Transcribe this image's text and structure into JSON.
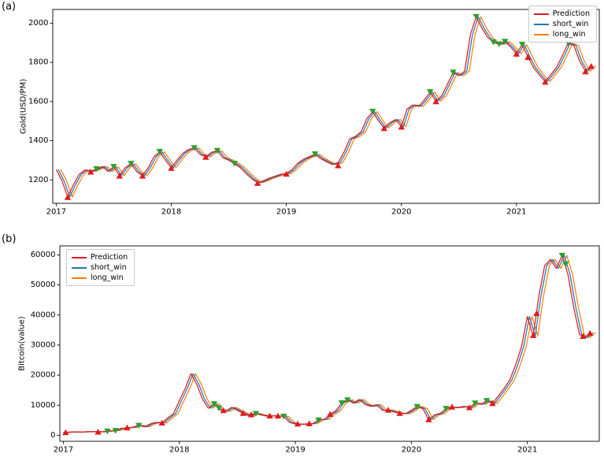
{
  "figure": {
    "background": "#ffffff"
  },
  "chart_data": [
    {
      "type": "line",
      "panel_label": "(a)",
      "title": "",
      "xlabel": "",
      "ylabel": "Gold(USD/PM)",
      "xlim": [
        2016.97,
        2021.72
      ],
      "ylim": [
        1080,
        2070
      ],
      "xticks": [
        2017,
        2018,
        2019,
        2020,
        2021
      ],
      "yticks": [
        1200,
        1400,
        1600,
        1800,
        2000
      ],
      "legend_position": "top-right",
      "x_start": 2017.0,
      "x_step": 0.05,
      "values": [
        1253,
        1195,
        1113,
        1175,
        1228,
        1250,
        1243,
        1255,
        1268,
        1243,
        1266,
        1222,
        1262,
        1282,
        1242,
        1222,
        1262,
        1318,
        1343,
        1300,
        1262,
        1300,
        1335,
        1355,
        1362,
        1330,
        1318,
        1340,
        1348,
        1312,
        1300,
        1282,
        1262,
        1232,
        1205,
        1185,
        1195,
        1208,
        1218,
        1228,
        1232,
        1252,
        1285,
        1305,
        1318,
        1330,
        1308,
        1292,
        1278,
        1288,
        1340,
        1408,
        1422,
        1445,
        1512,
        1548,
        1502,
        1465,
        1492,
        1508,
        1472,
        1562,
        1582,
        1575,
        1608,
        1648,
        1602,
        1628,
        1688,
        1748,
        1732,
        1755,
        1942,
        2032,
        1975,
        1928,
        1902,
        1892,
        1905,
        1878,
        1845,
        1890,
        1828,
        1772,
        1735,
        1702,
        1738,
        1775,
        1835,
        1898,
        1885,
        1805,
        1755,
        1782
      ],
      "series": [
        {
          "name": "Prediction",
          "color": "#e41a1c",
          "x_offset": 0.0
        },
        {
          "name": "short_win",
          "color": "#1f77b4",
          "x_offset": 0.018
        },
        {
          "name": "long_win",
          "color": "#ff7f0e",
          "x_offset": 0.04
        }
      ],
      "markers": [
        {
          "name": "buy-signal",
          "shape": "triangle-up",
          "color": "#e41a1c",
          "points": [
            [
              2017.1,
              1110
            ],
            [
              2017.3,
              1240
            ],
            [
              2017.55,
              1219
            ],
            [
              2017.75,
              1219
            ],
            [
              2018.0,
              1259
            ],
            [
              2018.3,
              1315
            ],
            [
              2018.75,
              1182
            ],
            [
              2019.0,
              1229
            ],
            [
              2019.45,
              1272
            ],
            [
              2019.85,
              1462
            ],
            [
              2020.0,
              1469
            ],
            [
              2020.3,
              1599
            ],
            [
              2021.0,
              1842
            ],
            [
              2021.1,
              1825
            ],
            [
              2021.25,
              1699
            ],
            [
              2021.6,
              1752
            ],
            [
              2021.65,
              1779
            ]
          ]
        },
        {
          "name": "sell-signal",
          "shape": "triangle-down",
          "color": "#2ca02c",
          "points": [
            [
              2017.35,
              1257
            ],
            [
              2017.5,
              1268
            ],
            [
              2017.65,
              1284
            ],
            [
              2017.9,
              1345
            ],
            [
              2018.2,
              1364
            ],
            [
              2018.4,
              1350
            ],
            [
              2018.55,
              1284
            ],
            [
              2019.25,
              1332
            ],
            [
              2019.75,
              1550
            ],
            [
              2020.25,
              1650
            ],
            [
              2020.45,
              1750
            ],
            [
              2020.65,
              2034
            ],
            [
              2020.8,
              1904
            ],
            [
              2020.85,
              1894
            ],
            [
              2020.9,
              1907
            ],
            [
              2021.05,
              1892
            ],
            [
              2021.45,
              1900
            ]
          ]
        }
      ]
    },
    {
      "type": "line",
      "panel_label": "(b)",
      "title": "",
      "xlabel": "",
      "ylabel": "Bitcoin(value)",
      "xlim": [
        2016.97,
        2021.62
      ],
      "ylim": [
        -2000,
        63000
      ],
      "xticks": [
        2017,
        2018,
        2019,
        2020,
        2021
      ],
      "yticks": [
        0,
        10000,
        20000,
        30000,
        40000,
        50000,
        60000
      ],
      "legend_position": "top-left",
      "x_start": 2017.0,
      "x_step": 0.05,
      "values": [
        950,
        1050,
        1150,
        1080,
        1180,
        1250,
        1100,
        1250,
        1450,
        1600,
        2300,
        2500,
        2700,
        3300,
        2800,
        3800,
        4300,
        4100,
        5800,
        7200,
        11500,
        15500,
        20500,
        17000,
        12000,
        9000,
        10500,
        8500,
        8000,
        9300,
        8300,
        7300,
        6500,
        7300,
        6800,
        6400,
        6500,
        6400,
        6300,
        4300,
        3800,
        3650,
        3800,
        3900,
        5100,
        5300,
        7000,
        8200,
        10800,
        11800,
        10700,
        11900,
        10300,
        9600,
        10200,
        8300,
        8400,
        7800,
        7300,
        7200,
        8300,
        9600,
        8800,
        5200,
        6800,
        7300,
        8900,
        9400,
        9200,
        9600,
        9200,
        10700,
        10300,
        11500,
        10600,
        13100,
        15600,
        18500,
        23500,
        29500,
        39500,
        33000,
        46500,
        56500,
        58500,
        55500,
        59800,
        53500,
        42500,
        33500,
        32500,
        34200
      ],
      "series": [
        {
          "name": "Prediction",
          "color": "#e41a1c",
          "x_offset": 0.0
        },
        {
          "name": "short_win",
          "color": "#1f77b4",
          "x_offset": 0.018
        },
        {
          "name": "long_win",
          "color": "#ff7f0e",
          "x_offset": 0.04
        }
      ],
      "markers": [
        {
          "name": "buy-signal",
          "shape": "triangle-up",
          "color": "#e41a1c",
          "points": [
            [
              2017.02,
              900
            ],
            [
              2017.3,
              1080
            ],
            [
              2017.55,
              2480
            ],
            [
              2017.85,
              4080
            ],
            [
              2018.38,
              8200
            ],
            [
              2018.55,
              7300
            ],
            [
              2018.62,
              6820
            ],
            [
              2018.78,
              6440
            ],
            [
              2018.85,
              6400
            ],
            [
              2019.02,
              3740
            ],
            [
              2019.12,
              3840
            ],
            [
              2019.3,
              6980
            ],
            [
              2019.8,
              8380
            ],
            [
              2019.9,
              7300
            ],
            [
              2020.15,
              5200
            ],
            [
              2020.35,
              9400
            ],
            [
              2020.5,
              9180
            ],
            [
              2020.7,
              10580
            ],
            [
              2021.05,
              33200
            ],
            [
              2021.08,
              40500
            ],
            [
              2021.48,
              32900
            ],
            [
              2021.54,
              33900
            ]
          ]
        },
        {
          "name": "sell-signal",
          "shape": "triangle-down",
          "color": "#2ca02c",
          "points": [
            [
              2017.38,
              1380
            ],
            [
              2017.45,
              1580
            ],
            [
              2017.65,
              3300
            ],
            [
              2018.3,
              10480
            ],
            [
              2018.34,
              9100
            ],
            [
              2018.66,
              7250
            ],
            [
              2018.9,
              6320
            ],
            [
              2019.2,
              5080
            ],
            [
              2019.4,
              10780
            ],
            [
              2019.45,
              11760
            ],
            [
              2020.05,
              9580
            ],
            [
              2020.3,
              8920
            ],
            [
              2020.55,
              10740
            ],
            [
              2020.65,
              11540
            ],
            [
              2021.3,
              59840
            ],
            [
              2021.33,
              57000
            ]
          ]
        }
      ]
    }
  ]
}
